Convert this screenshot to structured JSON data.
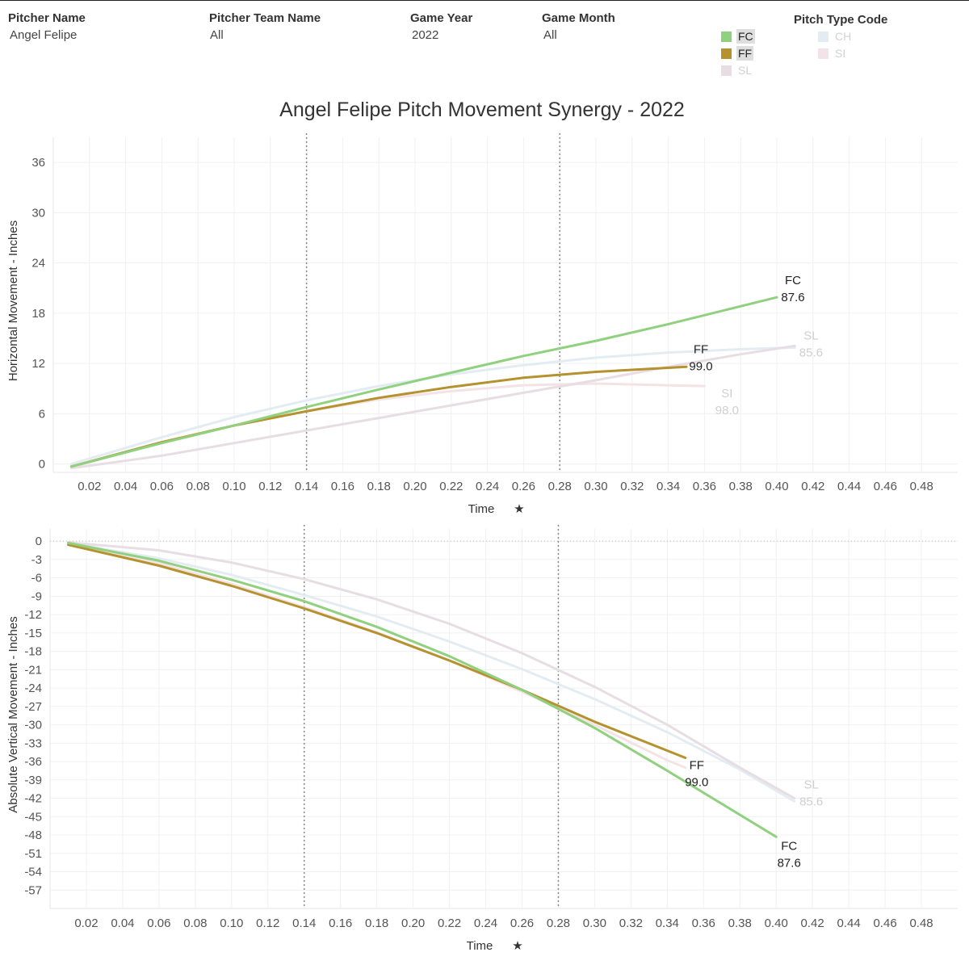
{
  "filters": [
    {
      "label": "Pitcher Name",
      "value": "Angel Felipe"
    },
    {
      "label": "Pitcher Team Name",
      "value": "All"
    },
    {
      "label": "Game Year",
      "value": "2022"
    },
    {
      "label": "Game Month",
      "value": "All"
    }
  ],
  "legend": {
    "title": "Pitch Type Code",
    "items": [
      {
        "code": "FC",
        "color": "#8fd17e",
        "active": true
      },
      {
        "code": "CH",
        "color": "#e3ecf2",
        "active": false
      },
      {
        "code": "FF",
        "color": "#b5922e",
        "active": true
      },
      {
        "code": "SI",
        "color": "#f4e3e6",
        "active": false
      },
      {
        "code": "SL",
        "color": "#e7dde3",
        "active": false
      }
    ]
  },
  "title": "Angel Felipe Pitch Movement Synergy - 2022",
  "chart_data": [
    {
      "type": "line",
      "xlabel": "Time",
      "ylabel": "Horizontal Movement - Inches",
      "xlim": [
        0.0,
        0.5
      ],
      "ylim": [
        -1,
        39
      ],
      "xticks": [
        0.02,
        0.04,
        0.06,
        0.08,
        0.1,
        0.12,
        0.14,
        0.16,
        0.18,
        0.2,
        0.22,
        0.24,
        0.26,
        0.28,
        0.3,
        0.32,
        0.34,
        0.36,
        0.38,
        0.4,
        0.42,
        0.44,
        0.46,
        0.48
      ],
      "yticks": [
        0,
        6,
        12,
        18,
        24,
        30,
        36
      ],
      "reference_lines": [
        0.14,
        0.28
      ],
      "series": [
        {
          "name": "CH",
          "color": "#e3ecf2",
          "active": false,
          "x": [
            0.01,
            0.06,
            0.1,
            0.14,
            0.18,
            0.22,
            0.26,
            0.3,
            0.34,
            0.38,
            0.41
          ],
          "y": [
            0,
            3.2,
            5.6,
            7.6,
            9.3,
            10.7,
            11.8,
            12.7,
            13.3,
            13.7,
            13.9
          ]
        },
        {
          "name": "SI",
          "color": "#f4e3e6",
          "active": false,
          "x": [
            0.01,
            0.06,
            0.1,
            0.14,
            0.18,
            0.22,
            0.26,
            0.3,
            0.34,
            0.36
          ],
          "y": [
            -0.4,
            2.6,
            4.6,
            6.3,
            7.7,
            8.7,
            9.4,
            9.6,
            9.4,
            9.3
          ],
          "label": [
            "SI",
            "98.0"
          ]
        },
        {
          "name": "SL",
          "color": "#e7dde3",
          "active": false,
          "x": [
            0.01,
            0.06,
            0.1,
            0.14,
            0.18,
            0.22,
            0.26,
            0.3,
            0.34,
            0.38,
            0.41
          ],
          "y": [
            -0.5,
            1.0,
            2.5,
            4.0,
            5.5,
            7.0,
            8.5,
            10.0,
            11.6,
            13.1,
            14.1
          ],
          "label": [
            "SL",
            "85.6"
          ]
        },
        {
          "name": "FF",
          "color": "#b5922e",
          "active": true,
          "x": [
            0.01,
            0.06,
            0.1,
            0.14,
            0.18,
            0.22,
            0.26,
            0.3,
            0.35
          ],
          "y": [
            -0.3,
            2.6,
            4.6,
            6.3,
            7.9,
            9.2,
            10.3,
            11.0,
            11.6
          ],
          "label": [
            "FF",
            "99.0"
          ]
        },
        {
          "name": "FC",
          "color": "#8fd17e",
          "active": true,
          "x": [
            0.01,
            0.06,
            0.1,
            0.14,
            0.18,
            0.22,
            0.26,
            0.3,
            0.34,
            0.4
          ],
          "y": [
            -0.3,
            2.5,
            4.6,
            6.8,
            8.9,
            10.9,
            12.9,
            14.7,
            16.7,
            19.9
          ],
          "label": [
            "FC",
            "87.6"
          ]
        }
      ]
    },
    {
      "type": "line",
      "xlabel": "Time",
      "ylabel": "Absolute Vertical Movement - Inches",
      "xlim": [
        0.0,
        0.5
      ],
      "ylim": [
        -60,
        2
      ],
      "xticks": [
        0.02,
        0.04,
        0.06,
        0.08,
        0.1,
        0.12,
        0.14,
        0.16,
        0.18,
        0.2,
        0.22,
        0.24,
        0.26,
        0.28,
        0.3,
        0.32,
        0.34,
        0.36,
        0.38,
        0.4,
        0.42,
        0.44,
        0.46,
        0.48
      ],
      "yticks": [
        0,
        -3,
        -6,
        -9,
        -12,
        -15,
        -18,
        -21,
        -24,
        -27,
        -30,
        -33,
        -36,
        -39,
        -42,
        -45,
        -48,
        -51,
        -54,
        -57
      ],
      "reference_lines": [
        0.14,
        0.28
      ],
      "series": [
        {
          "name": "CH",
          "color": "#e3ecf2",
          "active": false,
          "x": [
            0.01,
            0.06,
            0.1,
            0.14,
            0.18,
            0.22,
            0.26,
            0.3,
            0.34,
            0.38,
            0.41
          ],
          "y": [
            -0.3,
            -2.8,
            -5.5,
            -8.8,
            -12.3,
            -16.4,
            -20.9,
            -25.8,
            -31.2,
            -37.3,
            -42.5
          ]
        },
        {
          "name": "SI",
          "color": "#f4e3e6",
          "active": false,
          "x": [
            0.01,
            0.06,
            0.1,
            0.14,
            0.18,
            0.22,
            0.26,
            0.3,
            0.34,
            0.35
          ],
          "y": [
            -0.5,
            -3.6,
            -7.0,
            -10.8,
            -14.9,
            -19.5,
            -24.6,
            -30.0,
            -35.8,
            -37.0
          ]
        },
        {
          "name": "SL",
          "color": "#e7dde3",
          "active": false,
          "x": [
            0.01,
            0.06,
            0.1,
            0.14,
            0.18,
            0.22,
            0.26,
            0.3,
            0.34,
            0.38,
            0.41
          ],
          "y": [
            -0.2,
            -1.5,
            -3.5,
            -6.2,
            -9.5,
            -13.5,
            -18.3,
            -23.8,
            -30.0,
            -37.0,
            -42.0
          ],
          "label": [
            "SL",
            "85.6"
          ]
        },
        {
          "name": "FF",
          "color": "#b5922e",
          "active": true,
          "x": [
            0.01,
            0.06,
            0.1,
            0.14,
            0.18,
            0.22,
            0.26,
            0.3,
            0.35
          ],
          "y": [
            -0.6,
            -4.0,
            -7.3,
            -11.0,
            -15.0,
            -19.5,
            -24.3,
            -29.5,
            -35.4
          ],
          "label": [
            "FF",
            "99.0"
          ]
        },
        {
          "name": "FC",
          "color": "#8fd17e",
          "active": true,
          "x": [
            0.01,
            0.06,
            0.1,
            0.14,
            0.18,
            0.22,
            0.26,
            0.3,
            0.34,
            0.4
          ],
          "y": [
            -0.3,
            -3.2,
            -6.3,
            -9.8,
            -14.0,
            -18.8,
            -24.3,
            -30.5,
            -37.5,
            -48.3
          ],
          "label": [
            "FC",
            "87.6"
          ]
        }
      ]
    }
  ]
}
